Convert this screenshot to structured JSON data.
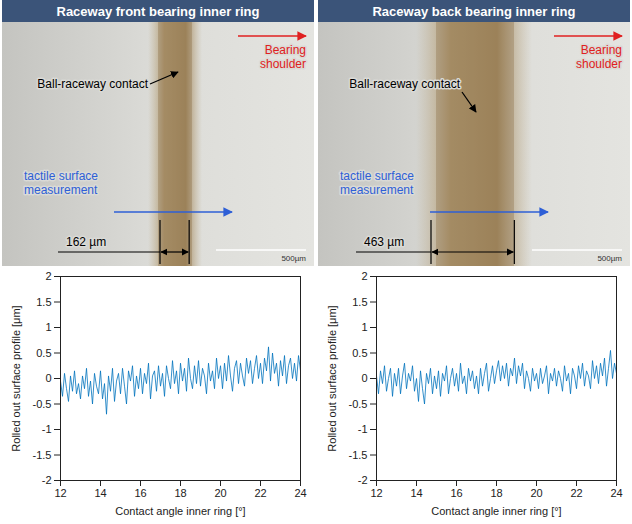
{
  "photos": [
    {
      "title": "Raceway front bearing inner ring",
      "contact_label": "Ball-raceway contact",
      "shoulder_label": "Bearing shoulder",
      "measurement_label": "tactile surface measurement",
      "contact_width": {
        "value": 162,
        "label": "162 µm"
      },
      "scale_bar": {
        "value": 500,
        "label": "500µm"
      }
    },
    {
      "title": "Raceway back bearing inner ring",
      "contact_label": "Ball-raceway contact",
      "shoulder_label": "Bearing shoulder",
      "measurement_label": "tactile surface measurement",
      "contact_width": {
        "value": 463,
        "label": "463 µm"
      },
      "scale_bar": {
        "value": 500,
        "label": "500µm"
      }
    }
  ],
  "chart_data": [
    {
      "type": "line",
      "x_label": "Contact angle inner ring [°]",
      "y_label": "Rolled out surface profile [μm]",
      "xlim": [
        12,
        24
      ],
      "xticks": [
        12,
        14,
        16,
        18,
        20,
        22,
        24
      ],
      "ylim": [
        -2,
        2
      ],
      "yticks": [
        -2,
        -1.5,
        -1,
        -0.5,
        0,
        0.5,
        1,
        1.5,
        2
      ],
      "grid": false,
      "x": [
        12,
        12.1,
        12.2,
        12.3,
        12.4,
        12.5,
        12.6,
        12.7,
        12.8,
        12.9,
        13,
        13.1,
        13.2,
        13.3,
        13.4,
        13.5,
        13.6,
        13.7,
        13.8,
        13.9,
        14,
        14.1,
        14.2,
        14.3,
        14.4,
        14.5,
        14.6,
        14.7,
        14.8,
        14.9,
        15,
        15.1,
        15.2,
        15.3,
        15.4,
        15.5,
        15.6,
        15.7,
        15.8,
        15.9,
        16,
        16.1,
        16.2,
        16.3,
        16.4,
        16.5,
        16.6,
        16.7,
        16.8,
        16.9,
        17,
        17.1,
        17.2,
        17.3,
        17.4,
        17.5,
        17.6,
        17.7,
        17.8,
        17.9,
        18,
        18.1,
        18.2,
        18.3,
        18.4,
        18.5,
        18.6,
        18.7,
        18.8,
        18.9,
        19,
        19.1,
        19.2,
        19.3,
        19.4,
        19.5,
        19.6,
        19.7,
        19.8,
        19.9,
        20,
        20.1,
        20.2,
        20.3,
        20.4,
        20.5,
        20.6,
        20.7,
        20.8,
        20.9,
        21,
        21.1,
        21.2,
        21.3,
        21.4,
        21.5,
        21.6,
        21.7,
        21.8,
        21.9,
        22,
        22.1,
        22.2,
        22.3,
        22.4,
        22.5,
        22.6,
        22.7,
        22.8,
        22.9,
        23,
        23.1,
        23.2,
        23.3,
        23.4,
        23.5,
        23.6,
        23.7,
        23.8,
        23.9,
        24
      ],
      "series": [
        {
          "color": "#0072bd",
          "values": [
            -0.05,
            -0.35,
            0.1,
            -0.2,
            -0.45,
            0.05,
            -0.25,
            0.15,
            -0.3,
            -0.1,
            -0.4,
            0.05,
            -0.2,
            0.2,
            -0.35,
            -0.05,
            -0.5,
            0.1,
            -0.15,
            -0.3,
            0.15,
            -0.4,
            -0.1,
            -0.7,
            0.05,
            -0.25,
            0.2,
            -0.45,
            -0.05,
            0.1,
            -0.3,
            0.2,
            -0.15,
            -0.5,
            0.15,
            -0.05,
            0.25,
            -0.35,
            0.05,
            -0.2,
            0.2,
            -0.3,
            0.1,
            -0.1,
            0.3,
            -0.4,
            0.05,
            0.15,
            -0.25,
            0.25,
            -0.15,
            0.1,
            -0.35,
            0.25,
            0,
            -0.2,
            0.35,
            -0.1,
            0.15,
            -0.3,
            0.3,
            -0.05,
            0.2,
            -0.25,
            0.4,
            0,
            -0.2,
            0.25,
            -0.1,
            0.35,
            -0.15,
            0.2,
            0.05,
            -0.3,
            0.3,
            -0.05,
            0.15,
            -0.2,
            0.4,
            0,
            0.25,
            -0.2,
            0.3,
            -0.05,
            0.45,
            0.05,
            -0.25,
            0.2,
            0.35,
            -0.1,
            0.3,
            0.05,
            -0.15,
            0.4,
            0.1,
            0.35,
            -0.1,
            0.2,
            0.45,
            0,
            0.3,
            -0.1,
            0.4,
            0.15,
            0.62,
            -0.05,
            0.5,
            0.1,
            0.3,
            -0.15,
            0.35,
            0.05,
            0.45,
            -0.1,
            0.25,
            0.4,
            0,
            0.3,
            -0.05,
            0.45,
            0.15
          ]
        }
      ]
    },
    {
      "type": "line",
      "x_label": "Contact angle inner ring [°]",
      "y_label": "Rolled out surface profile [μm]",
      "xlim": [
        12,
        24
      ],
      "xticks": [
        12,
        14,
        16,
        18,
        20,
        22,
        24
      ],
      "ylim": [
        -2,
        2
      ],
      "yticks": [
        -2,
        -1.5,
        -1,
        -0.5,
        0,
        0.5,
        1,
        1.5,
        2
      ],
      "grid": false,
      "x": [
        12,
        12.1,
        12.2,
        12.3,
        12.4,
        12.5,
        12.6,
        12.7,
        12.8,
        12.9,
        13,
        13.1,
        13.2,
        13.3,
        13.4,
        13.5,
        13.6,
        13.7,
        13.8,
        13.9,
        14,
        14.1,
        14.2,
        14.3,
        14.4,
        14.5,
        14.6,
        14.7,
        14.8,
        14.9,
        15,
        15.1,
        15.2,
        15.3,
        15.4,
        15.5,
        15.6,
        15.7,
        15.8,
        15.9,
        16,
        16.1,
        16.2,
        16.3,
        16.4,
        16.5,
        16.6,
        16.7,
        16.8,
        16.9,
        17,
        17.1,
        17.2,
        17.3,
        17.4,
        17.5,
        17.6,
        17.7,
        17.8,
        17.9,
        18,
        18.1,
        18.2,
        18.3,
        18.4,
        18.5,
        18.6,
        18.7,
        18.8,
        18.9,
        19,
        19.1,
        19.2,
        19.3,
        19.4,
        19.5,
        19.6,
        19.7,
        19.8,
        19.9,
        20,
        20.1,
        20.2,
        20.3,
        20.4,
        20.5,
        20.6,
        20.7,
        20.8,
        20.9,
        21,
        21.1,
        21.2,
        21.3,
        21.4,
        21.5,
        21.6,
        21.7,
        21.8,
        21.9,
        22,
        22.1,
        22.2,
        22.3,
        22.4,
        22.5,
        22.6,
        22.7,
        22.8,
        22.9,
        23,
        23.1,
        23.2,
        23.3,
        23.4,
        23.5,
        23.6,
        23.7,
        23.8,
        23.9,
        24
      ],
      "series": [
        {
          "color": "#0072bd",
          "values": [
            0.05,
            -0.3,
            0.15,
            -0.1,
            0.25,
            -0.25,
            0,
            0.2,
            -0.35,
            0.1,
            -0.15,
            0.2,
            -0.3,
            0.05,
            0.3,
            -0.2,
            0.1,
            -0.05,
            0.25,
            -0.25,
            0,
            -0.45,
            0.15,
            -0.2,
            -0.5,
            0.1,
            -0.1,
            0.2,
            -0.3,
            0.05,
            -0.2,
            0.15,
            -0.35,
            0.1,
            -0.05,
            0.25,
            -0.3,
            0,
            0.2,
            -0.15,
            0.1,
            -0.25,
            0.3,
            -0.1,
            0.05,
            -0.3,
            0.2,
            -0.05,
            0.15,
            -0.2,
            0.05,
            -0.3,
            0.2,
            -0.15,
            0.1,
            0.3,
            -0.25,
            0,
            0.25,
            -0.1,
            0.15,
            0.35,
            -0.05,
            0.25,
            0,
            0.3,
            -0.15,
            0.2,
            0.05,
            0.4,
            -0.1,
            0.25,
            0.05,
            0.3,
            -0.2,
            0.15,
            0,
            -0.25,
            0.2,
            -0.05,
            0.1,
            -0.2,
            0.2,
            -0.1,
            0.05,
            0.25,
            -0.3,
            0.1,
            -0.05,
            0.2,
            -0.15,
            0.15,
            0,
            -0.25,
            0.25,
            -0.05,
            0.1,
            -0.3,
            0.2,
            0.05,
            -0.2,
            0.25,
            0,
            0.3,
            -0.15,
            0.15,
            0.05,
            -0.2,
            0.35,
            0,
            0.25,
            -0.1,
            0.3,
            0.05,
            0.4,
            -0.15,
            0.2,
            0.55,
            0,
            0.3,
            0.1
          ]
        }
      ]
    }
  ]
}
